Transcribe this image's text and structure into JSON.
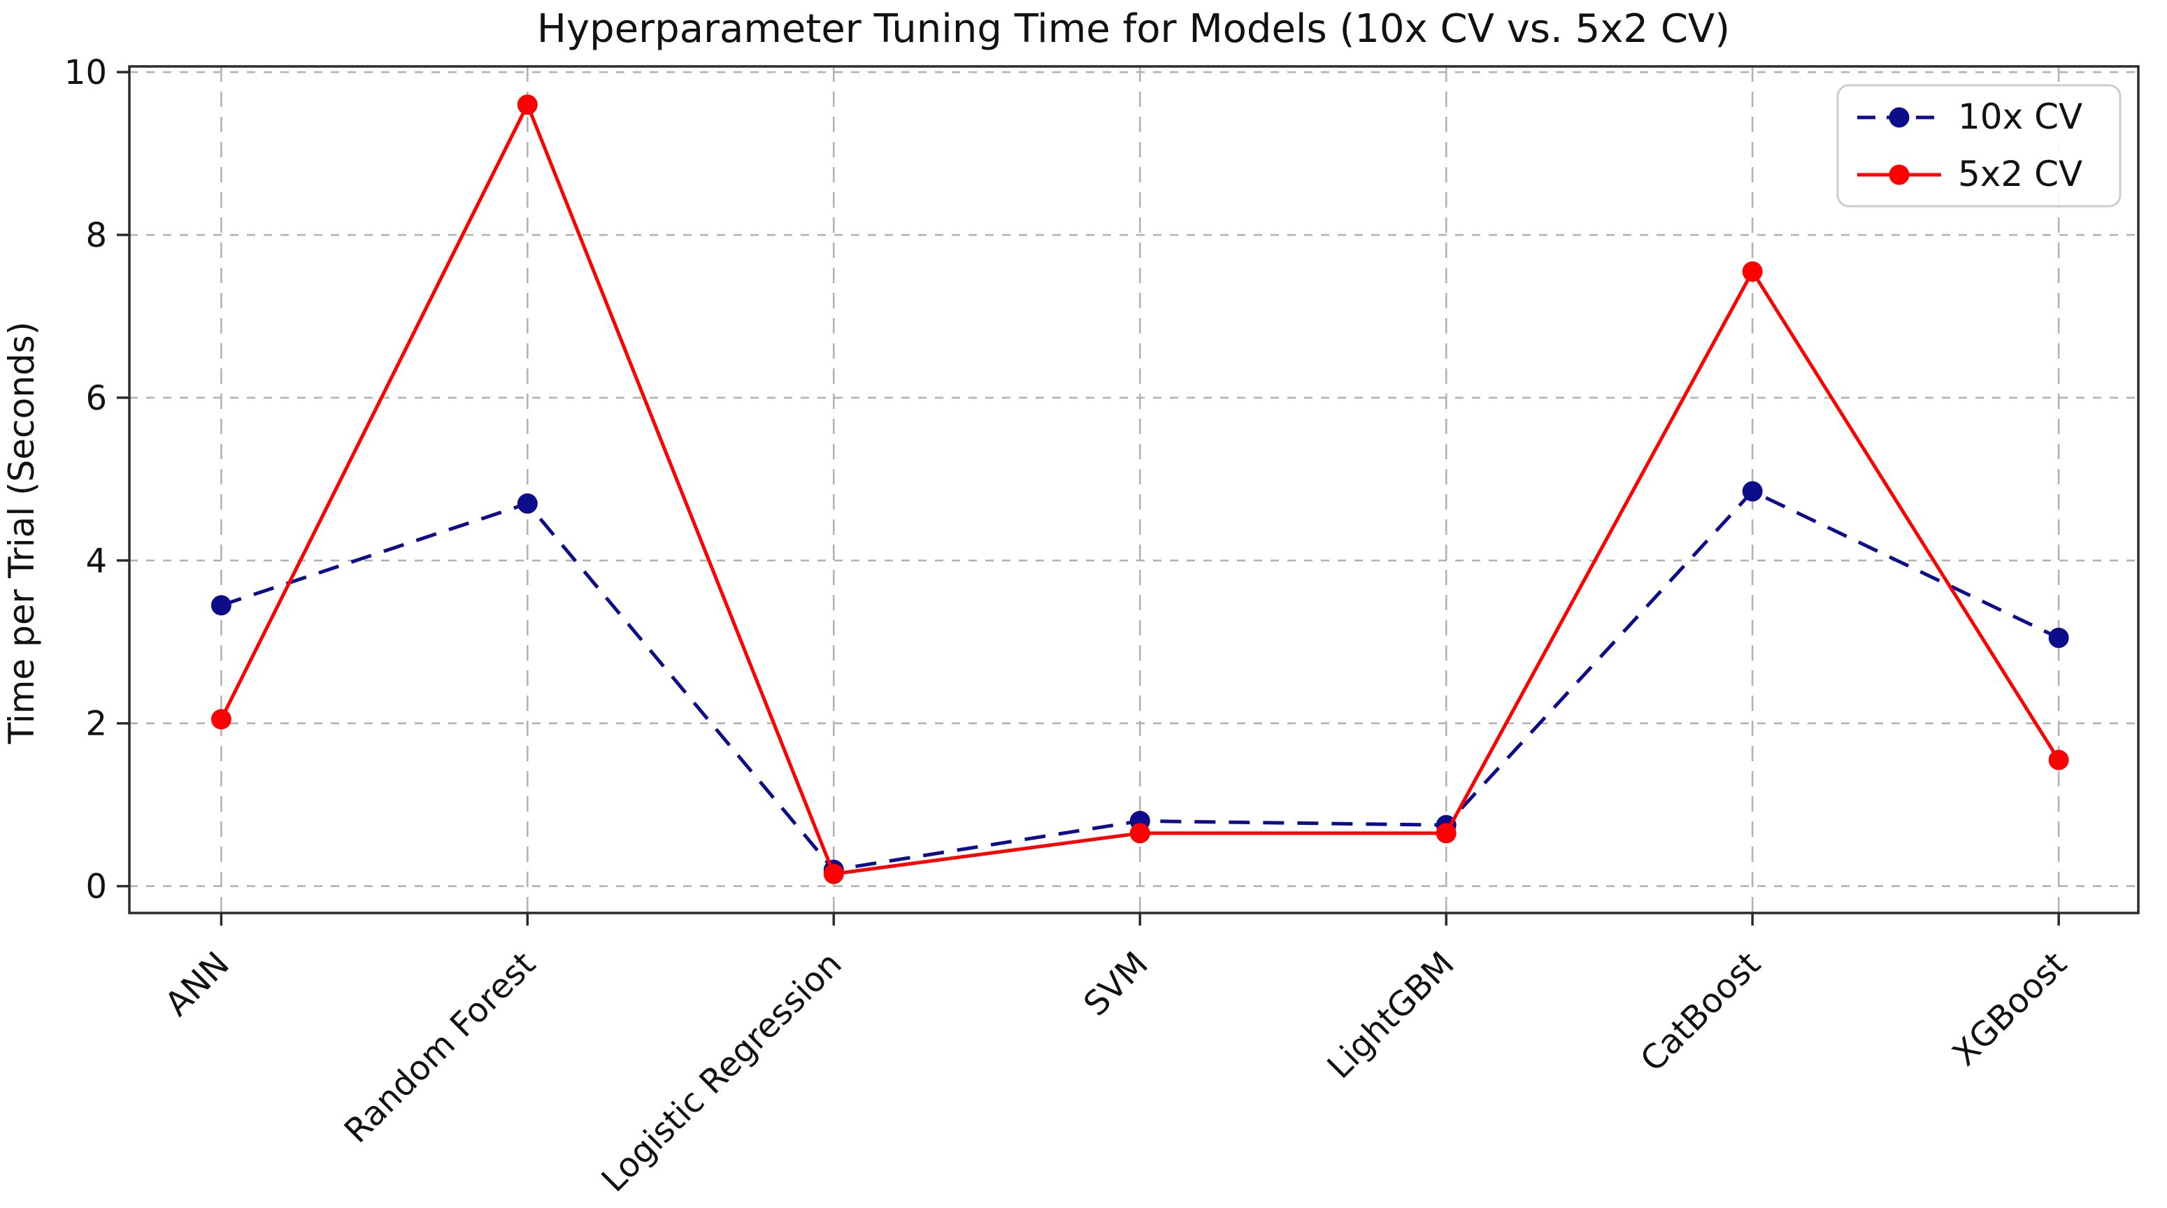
{
  "title": "Hyperparameter Tuning Time for Models (10x CV vs. 5x2 CV)",
  "chart_data": {
    "type": "line",
    "title": "Hyperparameter Tuning Time for Models (10x CV vs. 5x2 CV)",
    "xlabel": "",
    "ylabel": "Time per Trial (Seconds)",
    "categories": [
      "ANN",
      "Random Forest",
      "Logistic Regression",
      "SVM",
      "LightGBM",
      "CatBoost",
      "XGBoost"
    ],
    "series": [
      {
        "name": "10x CV",
        "color": "#0d0d8c",
        "line_style": "dashed",
        "marker": "circle",
        "values": [
          3.45,
          4.7,
          0.2,
          0.8,
          0.75,
          4.85,
          3.05
        ]
      },
      {
        "name": "5x2 CV",
        "color": "#ff0000",
        "line_style": "solid",
        "marker": "circle",
        "values": [
          2.05,
          9.6,
          0.15,
          0.65,
          0.65,
          7.55,
          1.55
        ]
      }
    ],
    "ylim": [
      -0.33,
      10.07
    ],
    "yticks": [
      0,
      2,
      4,
      6,
      8,
      10
    ],
    "grid": true,
    "legend_position": "upper right",
    "grid_color": "#b3b3b3",
    "spine_color": "#2b2b2b",
    "tick_label_color": "#111111"
  }
}
